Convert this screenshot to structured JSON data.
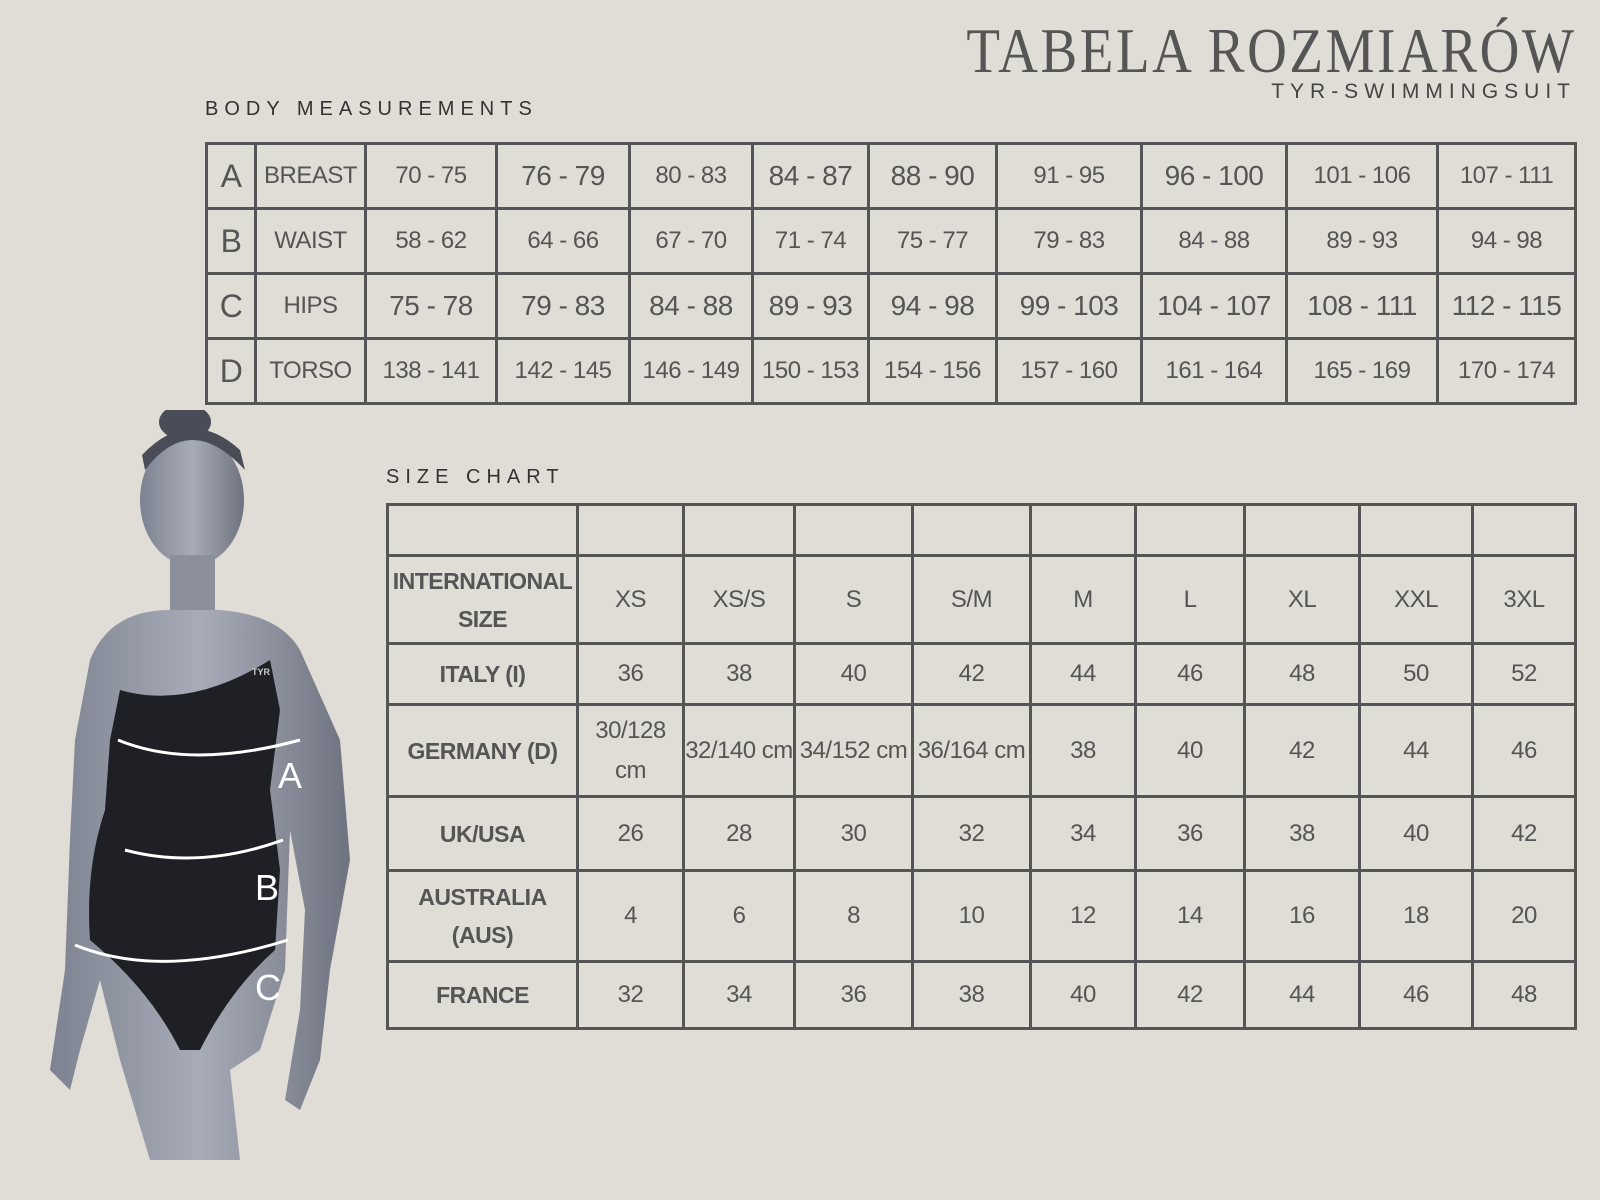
{
  "header": {
    "title": "TABELA ROZMIARÓW",
    "subtitle": "TYR-SWIMMINGSUIT"
  },
  "body_measurements": {
    "heading": "BODY MEASUREMENTS",
    "rows": [
      {
        "letter": "A",
        "label": "BREAST",
        "values": [
          "70 - 75",
          "76 - 79",
          "80 - 83",
          "84 - 87",
          "88 - 90",
          "91 - 95",
          "96 - 100",
          "101 - 106",
          "107 - 111"
        ]
      },
      {
        "letter": "B",
        "label": "WAIST",
        "values": [
          "58 - 62",
          "64 - 66",
          "67 - 70",
          "71 - 74",
          "75 - 77",
          "79 - 83",
          "84 - 88",
          "89 - 93",
          "94 - 98"
        ]
      },
      {
        "letter": "C",
        "label": "HIPS",
        "values": [
          "75 - 78",
          "79 - 83",
          "84 - 88",
          "89 - 93",
          "94 - 98",
          "99 - 103",
          "104 - 107",
          "108 - 111",
          "112 - 115"
        ]
      },
      {
        "letter": "D",
        "label": "TORSO",
        "values": [
          "138 - 141",
          "142 - 145",
          "146 - 149",
          "150 - 153",
          "154 - 156",
          "157 - 160",
          "161 - 164",
          "165 - 169",
          "170 - 174"
        ]
      }
    ]
  },
  "size_chart": {
    "heading": "SIZE CHART",
    "rows": [
      {
        "label": "",
        "values": [
          "",
          "",
          "",
          "",
          "",
          "",
          "",
          "",
          ""
        ]
      },
      {
        "label": "INTERNATIONAL SIZE",
        "values": [
          "XS",
          "XS/S",
          "S",
          "S/M",
          "M",
          "L",
          "XL",
          "XXL",
          "3XL"
        ]
      },
      {
        "label": "ITALY (I)",
        "values": [
          "36",
          "38",
          "40",
          "42",
          "44",
          "46",
          "48",
          "50",
          "52"
        ]
      },
      {
        "label": "GERMANY (D)",
        "values": [
          "30/128 cm",
          "32/140 cm",
          "34/152 cm",
          "36/164 cm",
          "38",
          "40",
          "42",
          "44",
          "46"
        ]
      },
      {
        "label": "UK/USA",
        "values": [
          "26",
          "28",
          "30",
          "32",
          "34",
          "36",
          "38",
          "40",
          "42"
        ]
      },
      {
        "label": "AUSTRALIA (AUS)",
        "values": [
          "4",
          "6",
          "8",
          "10",
          "12",
          "14",
          "16",
          "18",
          "20"
        ]
      },
      {
        "label": "FRANCE",
        "values": [
          "32",
          "34",
          "36",
          "38",
          "40",
          "42",
          "44",
          "46",
          "48"
        ]
      }
    ]
  },
  "figure": {
    "markers": [
      "A",
      "B",
      "C"
    ],
    "logo": "TYR"
  },
  "colors": {
    "background": "#e0dcd6",
    "border": "#555555",
    "text": "#555555"
  }
}
